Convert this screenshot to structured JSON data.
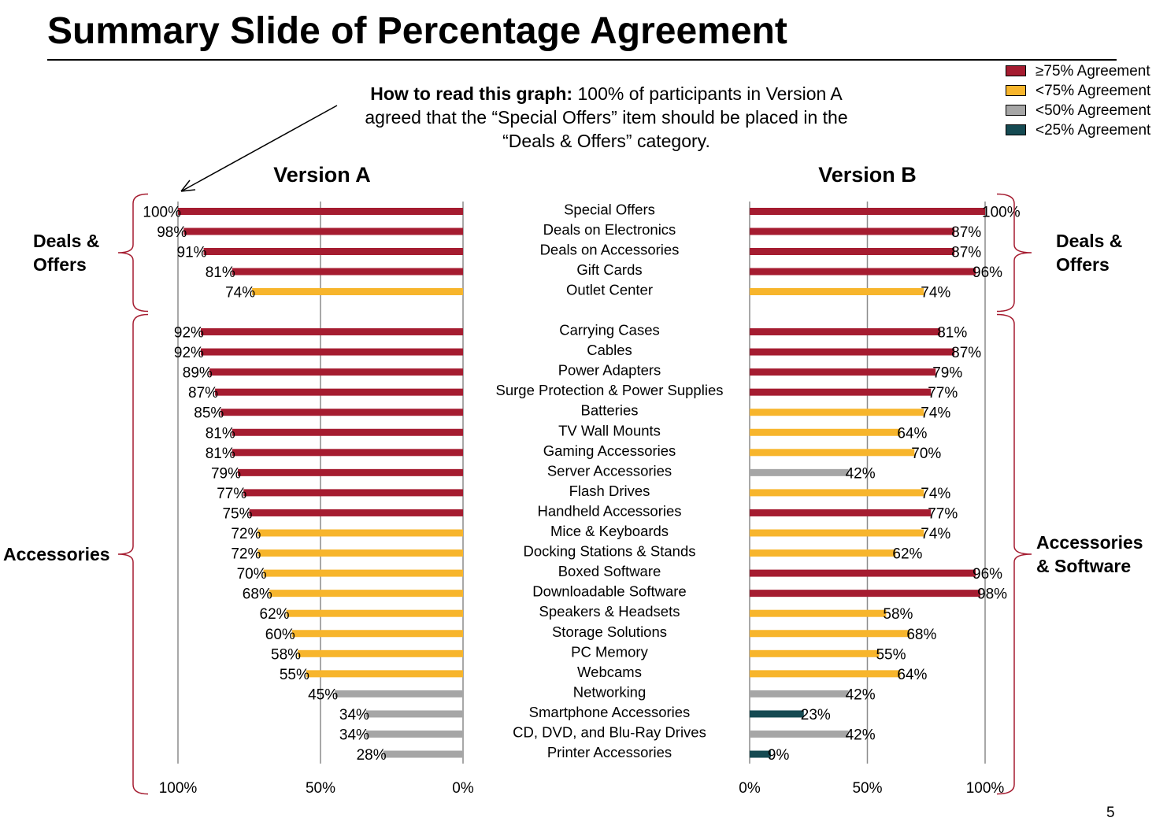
{
  "slide": {
    "title": "Summary Slide of Percentage Agreement",
    "howto_bold": "How to read this graph:",
    "howto_text": " 100% of participants in Version A agreed that the “Special Offers” item should be placed in the “Deals & Offers” category.",
    "page_number": "5"
  },
  "colors": {
    "high": "#a51c30",
    "mid": "#f7b52c",
    "low": "#a6a6a6",
    "verylow": "#154a52"
  },
  "legend": [
    {
      "label": "≥75% Agreement",
      "color": "#a51c30"
    },
    {
      "label": "<75% Agreement",
      "color": "#f7b52c"
    },
    {
      "label": "<50% Agreement",
      "color": "#a6a6a6"
    },
    {
      "label": "<25% Agreement",
      "color": "#154a52"
    }
  ],
  "chart_data": {
    "type": "bar",
    "orientation": "horizontal",
    "xlim": [
      0,
      100
    ],
    "tick_labels": [
      "0%",
      "50%",
      "100%"
    ],
    "panels": [
      {
        "title": "Version A",
        "direction": "right-to-left"
      },
      {
        "title": "Version B",
        "direction": "left-to-right"
      }
    ],
    "groups_a": [
      {
        "label": "Deals &\nOffers",
        "start": 0,
        "end": 4
      },
      {
        "label": "Accessories",
        "start": 5,
        "end": 27
      }
    ],
    "groups_b": [
      {
        "label": "Deals &\nOffers",
        "start": 0,
        "end": 4
      },
      {
        "label": "Accessories\n& Software",
        "start": 5,
        "end": 27
      }
    ],
    "categories": [
      "Special Offers",
      "Deals on Electronics",
      "Deals on Accessories",
      "Gift Cards",
      "Outlet Center",
      "Carrying Cases",
      "Cables",
      "Power Adapters",
      "Surge Protection & Power Supplies",
      "Batteries",
      "TV Wall Mounts",
      "Gaming Accessories",
      "Server Accessories",
      "Flash Drives",
      "Handheld Accessories",
      "Mice & Keyboards",
      "Docking Stations & Stands",
      "Boxed Software",
      "Downloadable Software",
      "Speakers & Headsets",
      "Storage Solutions",
      "PC Memory",
      "Webcams",
      "Networking",
      "Smartphone Accessories",
      "CD, DVD, and Blu-Ray Drives",
      "Printer Accessories"
    ],
    "series": [
      {
        "name": "Version A",
        "values": [
          100,
          98,
          91,
          81,
          74,
          92,
          92,
          89,
          87,
          85,
          81,
          81,
          79,
          77,
          75,
          72,
          72,
          70,
          68,
          62,
          60,
          58,
          55,
          45,
          34,
          34,
          28
        ]
      },
      {
        "name": "Version B",
        "values": [
          100,
          87,
          87,
          96,
          74,
          81,
          87,
          79,
          77,
          74,
          64,
          70,
          42,
          74,
          77,
          74,
          62,
          96,
          98,
          58,
          68,
          55,
          64,
          42,
          23,
          42,
          9
        ]
      }
    ]
  }
}
